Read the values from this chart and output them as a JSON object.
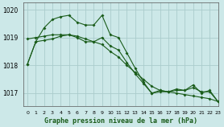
{
  "title": "Graphe pression niveau de la mer (hPa)",
  "background_color": "#cce8e8",
  "grid_color": "#aacccc",
  "line_color": "#1a5c1a",
  "xlim": [
    -0.5,
    23
  ],
  "ylim": [
    1016.55,
    1020.25
  ],
  "yticks": [
    1017,
    1018,
    1019,
    1020
  ],
  "xtick_labels": [
    "0",
    "1",
    "2",
    "3",
    "4",
    "5",
    "6",
    "7",
    "8",
    "9",
    "10",
    "11",
    "12",
    "13",
    "14",
    "15",
    "16",
    "17",
    "18",
    "19",
    "20",
    "21",
    "22",
    "23"
  ],
  "series1_wavy": {
    "x": [
      0,
      1,
      2,
      3,
      4,
      5,
      6,
      7,
      8,
      9,
      10,
      11,
      12,
      13,
      14,
      15,
      16,
      17,
      18,
      19,
      20,
      21,
      22,
      23
    ],
    "y": [
      1018.05,
      1018.85,
      1019.35,
      1019.65,
      1019.75,
      1019.8,
      1019.55,
      1019.45,
      1019.45,
      1019.8,
      1019.1,
      1019.0,
      1018.45,
      1017.9,
      1017.4,
      1017.0,
      1017.1,
      1017.05,
      1017.15,
      1017.1,
      1017.3,
      1017.0,
      1017.1,
      1016.7
    ]
  },
  "series2_diagonal": {
    "x": [
      0,
      1,
      2,
      3,
      4,
      5,
      6,
      7,
      8,
      9,
      10,
      11,
      12,
      13,
      14,
      15,
      16,
      17,
      18,
      19,
      20,
      21,
      22,
      23
    ],
    "y": [
      1018.95,
      1019.0,
      1019.05,
      1019.1,
      1019.1,
      1019.1,
      1019.05,
      1018.95,
      1018.85,
      1018.75,
      1018.5,
      1018.3,
      1018.0,
      1017.75,
      1017.5,
      1017.25,
      1017.1,
      1017.05,
      1017.0,
      1016.95,
      1016.9,
      1016.85,
      1016.8,
      1016.7
    ]
  },
  "series3_mid": {
    "x": [
      0,
      1,
      2,
      3,
      4,
      5,
      6,
      7,
      8,
      9,
      10,
      11,
      12,
      13,
      14,
      15,
      16,
      17,
      18,
      19,
      20,
      21,
      22,
      23
    ],
    "y": [
      1018.05,
      1018.85,
      1018.9,
      1018.95,
      1019.05,
      1019.1,
      1019.0,
      1018.85,
      1018.85,
      1019.0,
      1018.7,
      1018.55,
      1018.1,
      1017.7,
      1017.35,
      1017.0,
      1017.05,
      1017.05,
      1017.1,
      1017.1,
      1017.2,
      1017.05,
      1017.05,
      1016.7
    ]
  }
}
